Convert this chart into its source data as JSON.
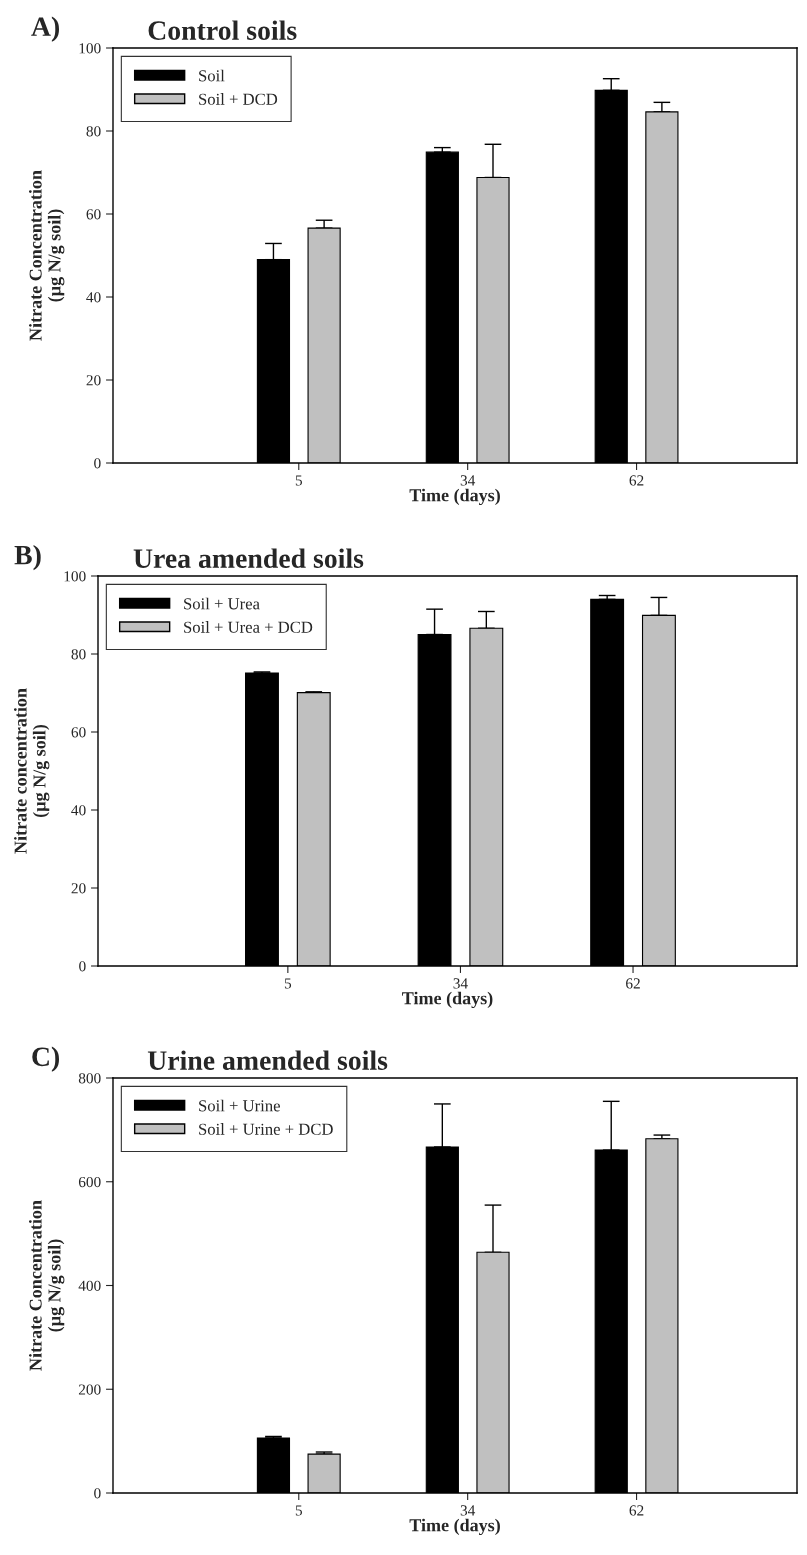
{
  "chart_data": [
    {
      "type": "bar",
      "title": "Control soils",
      "annotations": [
        "A)"
      ],
      "xlabel": "Time (days)",
      "ylabel": "Nitrate Concentration\n(µg N/g soil)",
      "categories": [
        "5",
        "34",
        "62"
      ],
      "ylim": [
        0,
        100
      ],
      "yticks": [
        0,
        20,
        40,
        60,
        80,
        100
      ],
      "legend": "top left",
      "grid": false,
      "series": [
        {
          "name": "Soil",
          "color": "#000000",
          "values": [
            49.0,
            74.9,
            89.8
          ],
          "errors": [
            [
              49.0,
              52.9
            ],
            [
              74.9,
              76.0
            ],
            [
              89.8,
              92.6
            ]
          ]
        },
        {
          "name": "Soil + DCD",
          "color": "#c0c0c0",
          "values": [
            56.6,
            68.8,
            84.6
          ],
          "errors": [
            [
              56.6,
              58.5
            ],
            [
              68.8,
              76.8
            ],
            [
              84.6,
              86.9
            ]
          ]
        }
      ]
    },
    {
      "type": "bar",
      "title": "Urea amended soils",
      "annotations": [
        "B)"
      ],
      "xlabel": "Time (days)",
      "ylabel": "Nitrate concentration\n(µg N/g soil)",
      "categories": [
        "5",
        "34",
        "62"
      ],
      "ylim": [
        0,
        100
      ],
      "yticks": [
        0,
        20,
        40,
        60,
        80,
        100
      ],
      "legend": "top left",
      "grid": false,
      "series": [
        {
          "name": "Soil + Urea",
          "color": "#000000",
          "values": [
            75.1,
            85.0,
            94.0
          ],
          "errors": [
            [
              75.1,
              75.4
            ],
            [
              85.0,
              91.5
            ],
            [
              94.0,
              95.0
            ]
          ]
        },
        {
          "name": "Soil + Urea + DCD",
          "color": "#c0c0c0",
          "values": [
            70.1,
            86.6,
            89.9
          ],
          "errors": [
            [
              70.1,
              70.3
            ],
            [
              86.6,
              90.9
            ],
            [
              89.9,
              94.5
            ]
          ]
        }
      ]
    },
    {
      "type": "bar",
      "title": "Urine amended soils",
      "annotations": [
        "C)"
      ],
      "xlabel": "Time (days)",
      "ylabel": "Nitrate Concentration\n(µg N/g soil)",
      "categories": [
        "5",
        "34",
        "62"
      ],
      "ylim": [
        0,
        800
      ],
      "yticks": [
        0,
        200,
        400,
        600,
        800
      ],
      "legend": "top left",
      "grid": false,
      "series": [
        {
          "name": "Soil + Urine",
          "color": "#000000",
          "values": [
            106,
            667,
            661
          ],
          "errors": [
            [
              106,
              109
            ],
            [
              667,
              750
            ],
            [
              661,
              755
            ]
          ]
        },
        {
          "name": "Soil + Urine + DCD",
          "color": "#c0c0c0",
          "values": [
            75,
            464,
            683
          ],
          "errors": [
            [
              75,
              79
            ],
            [
              464,
              555
            ],
            [
              683,
              690
            ]
          ]
        }
      ]
    }
  ]
}
